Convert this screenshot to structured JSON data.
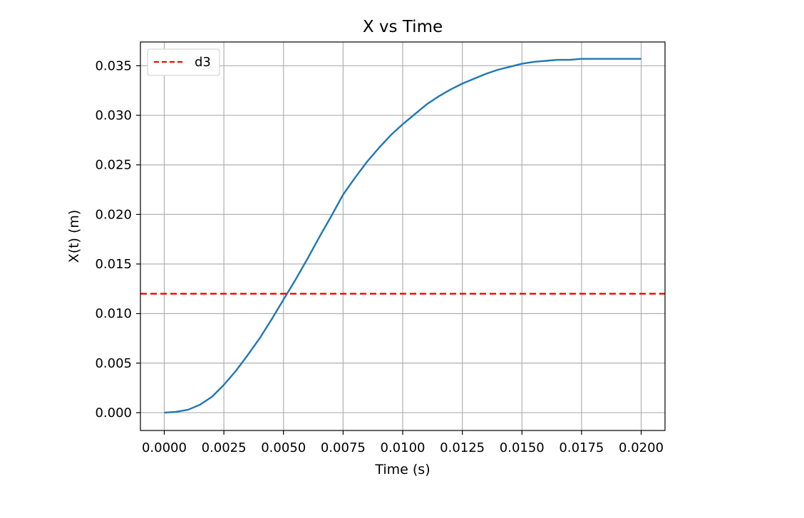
{
  "chart_data": {
    "type": "line",
    "title": "X vs Time",
    "xlabel": "Time (s)",
    "ylabel": "X(t) (m)",
    "xlim": [
      -0.001,
      0.021
    ],
    "ylim": [
      -0.0018,
      0.0374
    ],
    "xticks": [
      0.0,
      0.0025,
      0.005,
      0.0075,
      0.01,
      0.0125,
      0.015,
      0.0175,
      0.02
    ],
    "xtick_labels": [
      "0.0000",
      "0.0025",
      "0.0050",
      "0.0075",
      "0.0100",
      "0.0125",
      "0.0150",
      "0.0175",
      "0.0200"
    ],
    "yticks": [
      0.0,
      0.005,
      0.01,
      0.015,
      0.02,
      0.025,
      0.03,
      0.035
    ],
    "ytick_labels": [
      "0.000",
      "0.005",
      "0.010",
      "0.015",
      "0.020",
      "0.025",
      "0.030",
      "0.035"
    ],
    "grid": true,
    "legend_position": "top-left",
    "series": [
      {
        "color": "#1f77b4",
        "x": [
          0.0,
          0.0005,
          0.001,
          0.0015,
          0.002,
          0.0025,
          0.003,
          0.0035,
          0.004,
          0.0045,
          0.005,
          0.0055,
          0.006,
          0.0065,
          0.007,
          0.0075,
          0.008,
          0.0085,
          0.009,
          0.0095,
          0.01,
          0.0105,
          0.011,
          0.0115,
          0.012,
          0.0125,
          0.013,
          0.0135,
          0.014,
          0.0145,
          0.015,
          0.0155,
          0.016,
          0.0165,
          0.017,
          0.0175,
          0.018,
          0.0185,
          0.019,
          0.0195,
          0.02
        ],
        "y": [
          0.0,
          8e-05,
          0.0003,
          0.0008,
          0.0016,
          0.0028,
          0.0042,
          0.0058,
          0.0075,
          0.0094,
          0.0114,
          0.0134,
          0.0155,
          0.0177,
          0.0198,
          0.022,
          0.0237,
          0.0253,
          0.0267,
          0.028,
          0.0291,
          0.0301,
          0.0311,
          0.0319,
          0.0326,
          0.0332,
          0.0337,
          0.0342,
          0.0346,
          0.0349,
          0.0352,
          0.0354,
          0.0355,
          0.0356,
          0.0356,
          0.0357,
          0.0357,
          0.0357,
          0.0357,
          0.0357,
          0.0357
        ]
      },
      {
        "name": "d3",
        "color": "#ff0000",
        "style": "dashed",
        "y_const": 0.012
      }
    ]
  }
}
